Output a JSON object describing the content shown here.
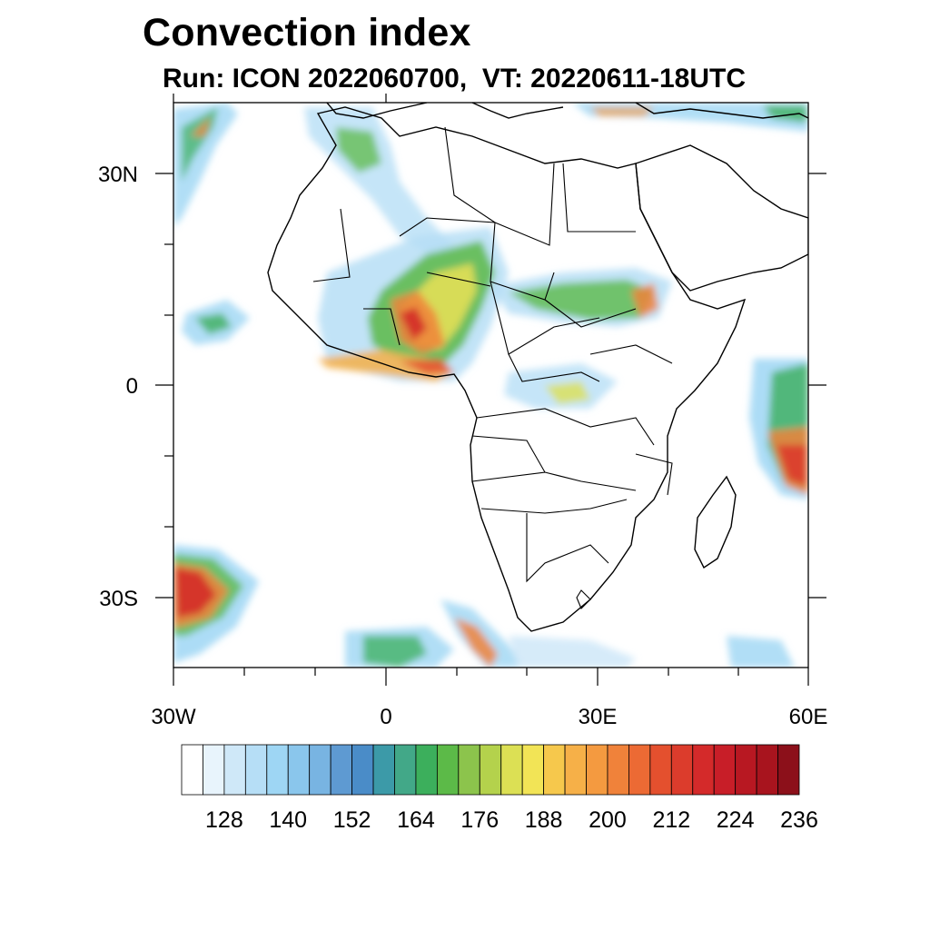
{
  "title": "Convection index",
  "subtitle": "Run: ICON 2022060700,  VT: 20220611-18UTC",
  "map": {
    "region": "Africa",
    "lon_range": [
      -30,
      60
    ],
    "lat_range": [
      -40,
      40
    ],
    "x_tick_labels": [
      "30W",
      "0",
      "30E",
      "60E"
    ],
    "y_tick_labels": [
      "30N",
      "0",
      "30S"
    ]
  },
  "colorbar": {
    "labels": [
      "128",
      "140",
      "152",
      "164",
      "176",
      "188",
      "200",
      "212",
      "224",
      "236"
    ],
    "colors": [
      "#ffffff",
      "#e8f4fc",
      "#cfe8f8",
      "#b6def6",
      "#9ed6f4",
      "#8ac6ec",
      "#78b4e2",
      "#5e9ad2",
      "#4a8cc8",
      "#3c9aa8",
      "#42a888",
      "#3caf5c",
      "#5cba48",
      "#8cc44c",
      "#b4d24c",
      "#dce054",
      "#f2e456",
      "#f6c84c",
      "#f6b048",
      "#f49a40",
      "#f0823a",
      "#ec6a34",
      "#e4502e",
      "#dc3c2c",
      "#d42a2a",
      "#c81e28",
      "#b81822",
      "#a8141e",
      "#8c101a"
    ]
  }
}
